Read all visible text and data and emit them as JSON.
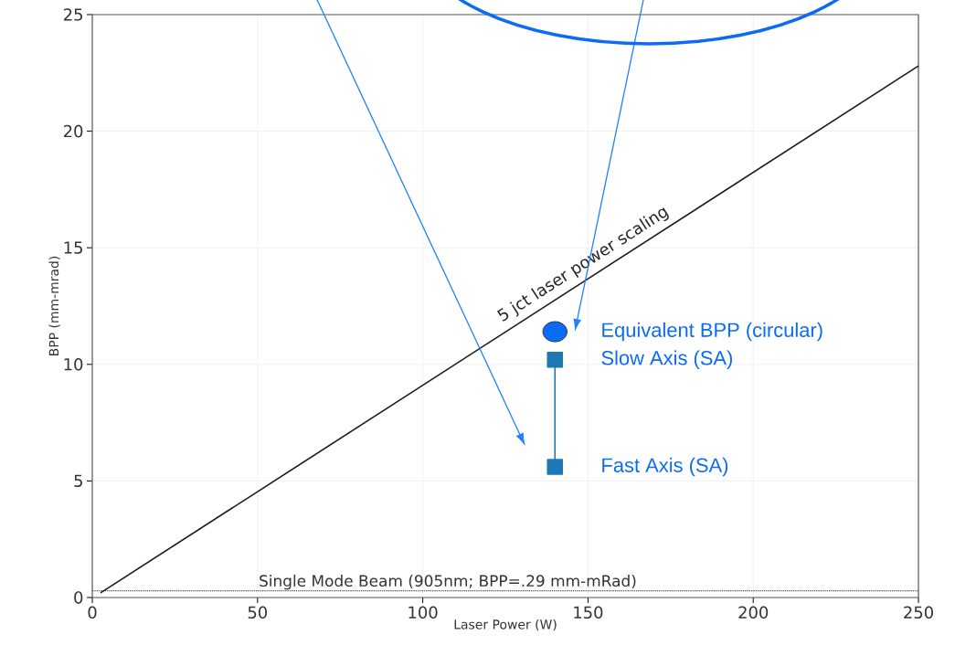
{
  "chart_data": {
    "type": "scatter",
    "xlabel": "Laser Power (W)",
    "ylabel": "BPP (mm-mrad)",
    "xlim": [
      0,
      250
    ],
    "ylim": [
      0,
      25
    ],
    "xticks": [
      0,
      50,
      100,
      150,
      200,
      250
    ],
    "yticks": [
      0,
      5,
      10,
      15,
      20,
      25
    ],
    "grid": true,
    "series": [
      {
        "type": "line",
        "x": [
          2.5,
          250
        ],
        "values": [
          0.2,
          22.8
        ],
        "color": "#1a1a1a",
        "marker": "none"
      },
      {
        "type": "line",
        "x": [
          140,
          140
        ],
        "values": [
          10.2,
          5.6
        ],
        "color": "#1f77b4",
        "marker": "square"
      },
      {
        "x": [
          140
        ],
        "values": [
          11.4
        ],
        "color": "#0a6cf5",
        "marker": "circle"
      }
    ],
    "ref_lines": [
      {
        "axis": "y",
        "value": 0.29,
        "label": "Single Mode Beam (905nm; BPP=.29 mm-mRad)",
        "color": "#555555",
        "line_style": "dotted"
      }
    ],
    "annotations": [
      "5 jct laser power scaling",
      "Equivalent BPP (circular)",
      "Slow Axis (SA)",
      "Fast Axis (SA)"
    ]
  }
}
